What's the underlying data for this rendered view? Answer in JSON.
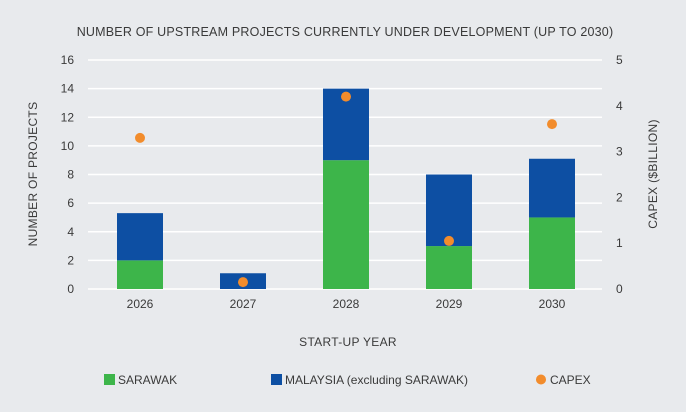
{
  "chart_data": {
    "type": "bar",
    "stacked": true,
    "title": "NUMBER OF UPSTREAM PROJECTS CURRENTLY UNDER DEVELOPMENT (UP TO 2030)",
    "xlabel": "START-UP YEAR",
    "ylabel": "NUMBER OF PROJECTS",
    "y2label": "CAPEX ($BILLION)",
    "categories": [
      "2026",
      "2027",
      "2028",
      "2029",
      "2030"
    ],
    "ylim": [
      0,
      16
    ],
    "yticks": [
      0,
      2,
      4,
      6,
      8,
      10,
      12,
      14,
      16
    ],
    "y2lim": [
      0,
      5
    ],
    "y2ticks": [
      0,
      1,
      2,
      3,
      4,
      5
    ],
    "grid": true,
    "legend_position": "bottom",
    "series": [
      {
        "name": "SARAWAK",
        "kind": "bar",
        "axis": "left",
        "color": "#3db54a",
        "values": [
          2,
          0,
          9,
          3,
          5
        ]
      },
      {
        "name": "MALAYSIA (excluding SARAWAK)",
        "kind": "bar",
        "axis": "left",
        "color": "#0d4fa3",
        "values": [
          3.3,
          1.1,
          5,
          5,
          4.1
        ]
      },
      {
        "name": "CAPEX",
        "kind": "scatter",
        "axis": "right",
        "color": "#f28c2c",
        "values": [
          3.3,
          0.15,
          4.2,
          1.05,
          3.6
        ]
      }
    ]
  }
}
